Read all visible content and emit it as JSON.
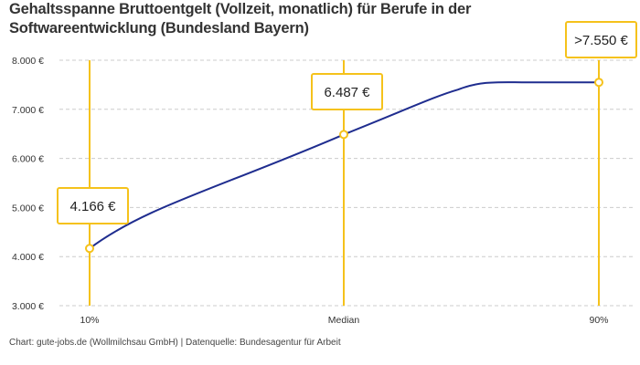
{
  "chart_data": {
    "type": "line",
    "title": "Gehaltsspanne Bruttoentgelt (Vollzeit, monatlich) für Berufe in der Softwareentwicklung (Bundesland Bayern)",
    "categories": [
      "10%",
      "Median",
      "90%"
    ],
    "values": [
      4166,
      6487,
      7550
    ],
    "data_labels": [
      "4.166 €",
      "6.487 €",
      ">7.550 €"
    ],
    "xlabel": "",
    "ylabel": "",
    "ylim": [
      3000,
      8000
    ],
    "yticks": [
      3000,
      4000,
      5000,
      6000,
      7000,
      8000
    ],
    "ytick_labels": [
      "3.000 €",
      "4.000 €",
      "5.000 €",
      "6.000 €",
      "7.000 €",
      "8.000 €"
    ],
    "grid": "horizontal dashed",
    "legend": "none",
    "colors": {
      "line": "#1f2d8f",
      "marker": "#f5c21b",
      "grid": "#cccccc"
    }
  },
  "footer": "Chart: gute-jobs.de (Wollmilchsau GmbH) | Datenquelle: Bundesagentur für Arbeit"
}
